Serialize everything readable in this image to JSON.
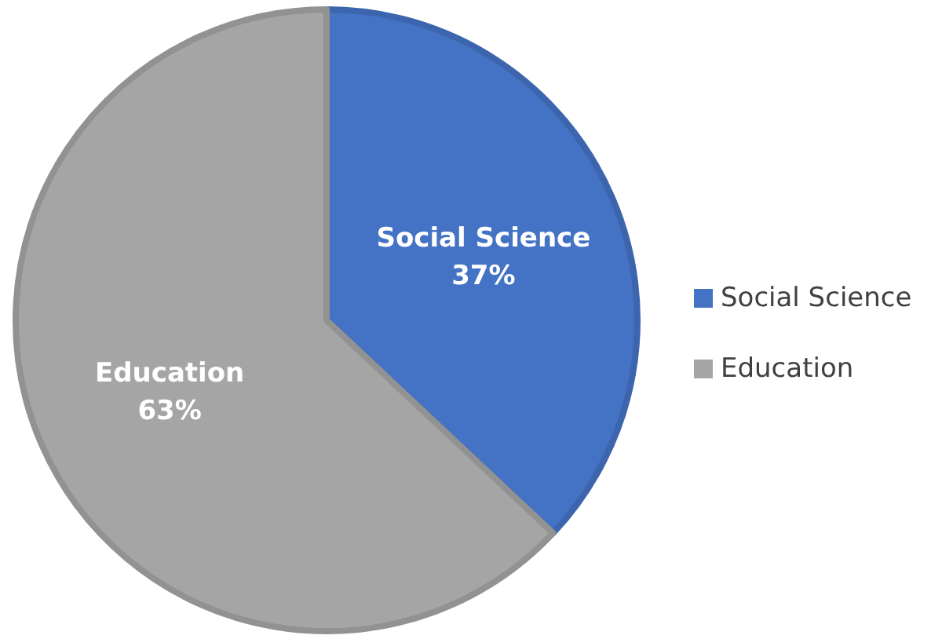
{
  "chart_data": {
    "type": "pie",
    "categories": [
      "Social Science",
      "Education"
    ],
    "values": [
      37,
      63
    ],
    "colors": [
      "#4472c4",
      "#a5a5a5"
    ],
    "value_labels": [
      "37%",
      "63%"
    ],
    "legend": "right"
  }
}
